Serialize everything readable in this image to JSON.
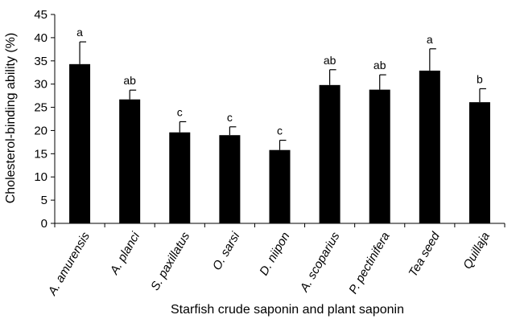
{
  "chart_data": {
    "type": "bar",
    "title": "",
    "xlabel": "Starfish crude saponin and plant saponin",
    "ylabel": "Cholesterol-binding ability (%)",
    "ylim": [
      0,
      45
    ],
    "yticks": [
      0,
      5,
      10,
      15,
      20,
      25,
      30,
      35,
      40,
      45
    ],
    "grid": false,
    "legend": "none",
    "categories": [
      "A. amurensis",
      "A. planci",
      "S. paxillatus",
      "O. sarsi",
      "D. niipon",
      "A. scoparius",
      "P. pectinifera",
      "Tea seed",
      "Quillaja"
    ],
    "values": [
      34.3,
      26.7,
      19.6,
      19.0,
      15.8,
      29.8,
      28.8,
      32.9,
      26.1
    ],
    "errors": [
      4.8,
      2.0,
      2.3,
      1.8,
      2.1,
      3.3,
      3.2,
      4.7,
      2.9
    ],
    "significance_letters": [
      "a",
      "ab",
      "c",
      "c",
      "c",
      "ab",
      "ab",
      "a",
      "b"
    ],
    "bar_color": "#000000"
  }
}
